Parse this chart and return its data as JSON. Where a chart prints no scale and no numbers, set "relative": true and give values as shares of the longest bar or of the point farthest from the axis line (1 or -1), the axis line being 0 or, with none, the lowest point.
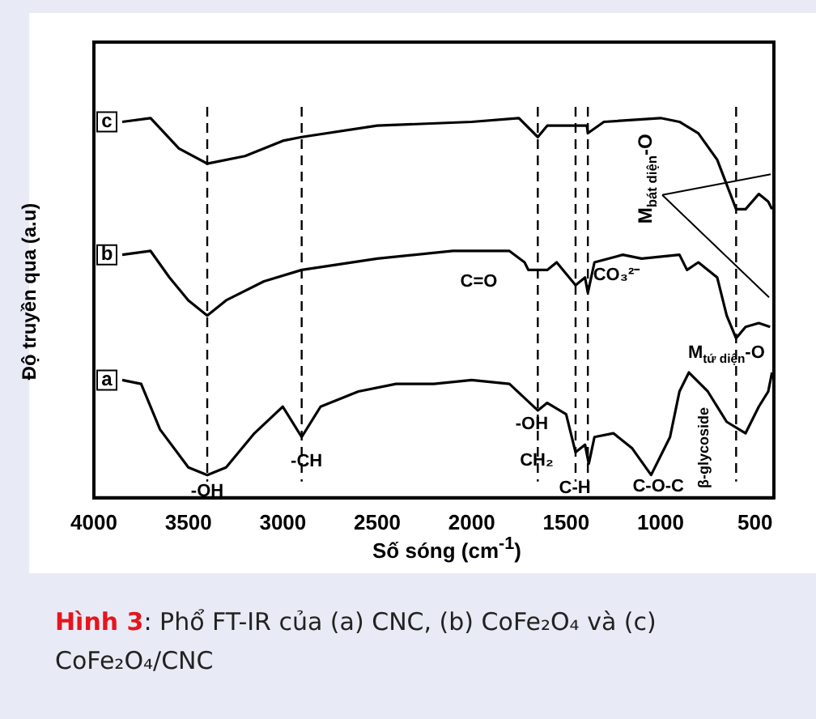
{
  "chart_data": {
    "type": "line",
    "relative": true,
    "xlabel": "Số sóng (cm$^{-1}$)",
    "ylabel": "Độ truyền qua (a.u)",
    "xlim": [
      4000,
      400
    ],
    "xticks": [
      4000,
      3500,
      3000,
      2500,
      2000,
      1500,
      1000,
      500
    ],
    "tick_labels": "x",
    "grid": false,
    "legend": false,
    "marker": "none",
    "line_style": "solid",
    "series": [
      {
        "name": "c",
        "color": "#000000",
        "x": [
          3850,
          3700,
          3550,
          3400,
          3200,
          3000,
          2900,
          2500,
          2000,
          1750,
          1650,
          1600,
          1500,
          1390,
          1385,
          1300,
          1000,
          900,
          800,
          700,
          600,
          550,
          480,
          430,
          410
        ],
        "values": [
          0.99,
          1,
          0.92,
          0.88,
          0.9,
          0.94,
          0.95,
          0.98,
          0.99,
          1,
          0.95,
          0.98,
          0.98,
          0.98,
          0.96,
          0.99,
          1,
          0.99,
          0.96,
          0.89,
          0.76,
          0.76,
          0.8,
          0.78,
          0.76
        ]
      },
      {
        "name": "b",
        "color": "#000000",
        "x": [
          3850,
          3700,
          3600,
          3500,
          3400,
          3300,
          3100,
          2900,
          2500,
          2100,
          1800,
          1720,
          1700,
          1650,
          1600,
          1550,
          1450,
          1400,
          1385,
          1350,
          1200,
          1100,
          900,
          860,
          800,
          700,
          650,
          600,
          550,
          480,
          420
        ],
        "values": [
          0.64,
          0.65,
          0.58,
          0.52,
          0.48,
          0.52,
          0.57,
          0.6,
          0.63,
          0.65,
          0.65,
          0.62,
          0.6,
          0.6,
          0.6,
          0.62,
          0.56,
          0.58,
          0.54,
          0.62,
          0.64,
          0.63,
          0.64,
          0.6,
          0.62,
          0.58,
          0.48,
          0.42,
          0.45,
          0.46,
          0.45
        ]
      },
      {
        "name": "a",
        "color": "#000000",
        "x": [
          3850,
          3750,
          3650,
          3500,
          3400,
          3300,
          3150,
          3000,
          2900,
          2800,
          2600,
          2400,
          2200,
          2000,
          1800,
          1650,
          1600,
          1500,
          1450,
          1400,
          1380,
          1350,
          1250,
          1150,
          1050,
          950,
          900,
          850,
          750,
          650,
          550,
          480,
          430,
          410
        ],
        "values": [
          0.31,
          0.3,
          0.18,
          0.08,
          0.06,
          0.08,
          0.17,
          0.24,
          0.16,
          0.24,
          0.28,
          0.3,
          0.3,
          0.31,
          0.3,
          0.23,
          0.25,
          0.22,
          0.12,
          0.14,
          0.09,
          0.16,
          0.17,
          0.13,
          0.06,
          0.16,
          0.28,
          0.33,
          0.28,
          0.2,
          0.17,
          0.24,
          0.28,
          0.33
        ]
      }
    ],
    "ref_lines": [
      {
        "axis": "x",
        "value": 3400,
        "line_style": "dashed"
      },
      {
        "axis": "x",
        "value": 2900,
        "line_style": "dashed"
      },
      {
        "axis": "x",
        "value": 1650,
        "line_style": "dashed"
      },
      {
        "axis": "x",
        "value": 1450,
        "line_style": "dashed"
      },
      {
        "axis": "x",
        "value": 1385,
        "line_style": "dashed"
      },
      {
        "axis": "x",
        "value": 600,
        "line_style": "dashed"
      }
    ],
    "annotations": [
      {
        "text": "-OH",
        "x": 3400,
        "y": 0.06
      },
      {
        "text": "-CH",
        "x": 2900,
        "y": 0.16
      },
      {
        "text": "CH₂",
        "x": 1450,
        "y": 0.12
      },
      {
        "text": "C-H",
        "x": 1385,
        "y": 0.09
      },
      {
        "text": "M$_{tứ diện}$-O",
        "x": 600,
        "y": 0.42
      },
      "C=O",
      "CO₃²⁻",
      "M$_{bát diện}$-O",
      "-OH",
      "C-O-C",
      "β-glycoside",
      "Hình 3: Phổ FT-IR của (a) CNC, (b) CoFe₂O₄ và (c) CoFe₂O₄/CNC"
    ]
  }
}
